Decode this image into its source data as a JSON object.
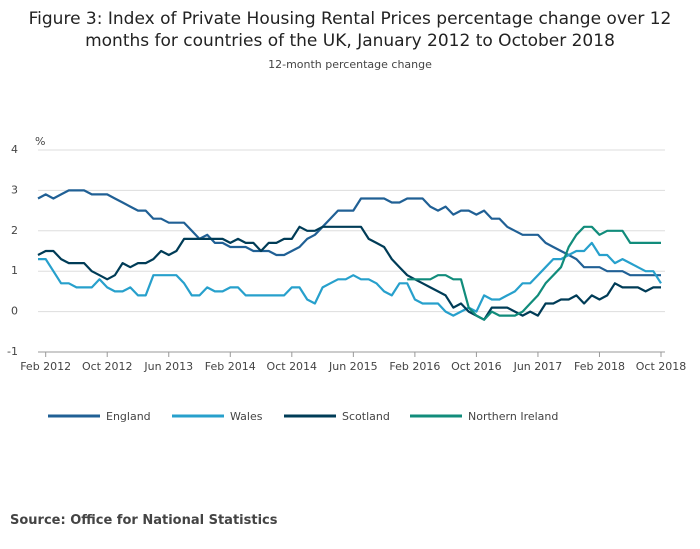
{
  "chart_data": {
    "type": "line",
    "title": "Figure 3: Index of Private Housing Rental Prices percentage change over 12 months for countries of the UK, January 2012 to October 2018",
    "subtitle": "12-month percentage change",
    "y_label": "%",
    "source": "Source: Office for National Statistics",
    "x": [
      "2012-01",
      "2012-02",
      "2012-03",
      "2012-04",
      "2012-05",
      "2012-06",
      "2012-07",
      "2012-08",
      "2012-09",
      "2012-10",
      "2012-11",
      "2012-12",
      "2013-01",
      "2013-02",
      "2013-03",
      "2013-04",
      "2013-05",
      "2013-06",
      "2013-07",
      "2013-08",
      "2013-09",
      "2013-10",
      "2013-11",
      "2013-12",
      "2014-01",
      "2014-02",
      "2014-03",
      "2014-04",
      "2014-05",
      "2014-06",
      "2014-07",
      "2014-08",
      "2014-09",
      "2014-10",
      "2014-11",
      "2014-12",
      "2015-01",
      "2015-02",
      "2015-03",
      "2015-04",
      "2015-05",
      "2015-06",
      "2015-07",
      "2015-08",
      "2015-09",
      "2015-10",
      "2015-11",
      "2015-12",
      "2016-01",
      "2016-02",
      "2016-03",
      "2016-04",
      "2016-05",
      "2016-06",
      "2016-07",
      "2016-08",
      "2016-09",
      "2016-10",
      "2016-11",
      "2016-12",
      "2017-01",
      "2017-02",
      "2017-03",
      "2017-04",
      "2017-05",
      "2017-06",
      "2017-07",
      "2017-08",
      "2017-09",
      "2017-10",
      "2017-11",
      "2017-12",
      "2018-01",
      "2018-02",
      "2018-03",
      "2018-04",
      "2018-05",
      "2018-06",
      "2018-07",
      "2018-08",
      "2018-09",
      "2018-10"
    ],
    "xticks": [
      {
        "value": "2012-02",
        "label": "Feb 2012"
      },
      {
        "value": "2012-10",
        "label": "Oct 2012"
      },
      {
        "value": "2013-06",
        "label": "Jun 2013"
      },
      {
        "value": "2014-02",
        "label": "Feb 2014"
      },
      {
        "value": "2014-10",
        "label": "Oct 2014"
      },
      {
        "value": "2015-06",
        "label": "Jun 2015"
      },
      {
        "value": "2016-02",
        "label": "Feb 2016"
      },
      {
        "value": "2016-10",
        "label": "Oct 2016"
      },
      {
        "value": "2017-06",
        "label": "Jun 2017"
      },
      {
        "value": "2018-02",
        "label": "Feb 2018"
      },
      {
        "value": "2018-10",
        "label": "Oct 2018"
      }
    ],
    "ylim": [
      -1,
      4
    ],
    "yticks": [
      -1,
      0,
      1,
      2,
      3,
      4
    ],
    "grid": true,
    "series": [
      {
        "name": "England",
        "color": "#206095",
        "values": [
          2.8,
          2.9,
          2.8,
          2.9,
          3.0,
          3.0,
          3.0,
          2.9,
          2.9,
          2.9,
          2.8,
          2.7,
          2.6,
          2.5,
          2.5,
          2.3,
          2.3,
          2.2,
          2.2,
          2.2,
          2.0,
          1.8,
          1.9,
          1.7,
          1.7,
          1.6,
          1.6,
          1.6,
          1.5,
          1.5,
          1.5,
          1.4,
          1.4,
          1.5,
          1.6,
          1.8,
          1.9,
          2.1,
          2.3,
          2.5,
          2.5,
          2.5,
          2.8,
          2.8,
          2.8,
          2.8,
          2.7,
          2.7,
          2.8,
          2.8,
          2.8,
          2.6,
          2.5,
          2.6,
          2.4,
          2.5,
          2.5,
          2.4,
          2.5,
          2.3,
          2.3,
          2.1,
          2.0,
          1.9,
          1.9,
          1.9,
          1.7,
          1.6,
          1.5,
          1.4,
          1.3,
          1.1,
          1.1,
          1.1,
          1.0,
          1.0,
          1.0,
          0.9,
          0.9,
          0.9,
          0.9,
          0.9
        ]
      },
      {
        "name": "Wales",
        "color": "#27a0cc",
        "values": [
          1.3,
          1.3,
          1.0,
          0.7,
          0.7,
          0.6,
          0.6,
          0.6,
          0.8,
          0.6,
          0.5,
          0.5,
          0.6,
          0.4,
          0.4,
          0.9,
          0.9,
          0.9,
          0.9,
          0.7,
          0.4,
          0.4,
          0.6,
          0.5,
          0.5,
          0.6,
          0.6,
          0.4,
          0.4,
          0.4,
          0.4,
          0.4,
          0.4,
          0.6,
          0.6,
          0.3,
          0.2,
          0.6,
          0.7,
          0.8,
          0.8,
          0.9,
          0.8,
          0.8,
          0.7,
          0.5,
          0.4,
          0.7,
          0.7,
          0.3,
          0.2,
          0.2,
          0.2,
          0.0,
          -0.1,
          0.0,
          0.1,
          0.0,
          0.4,
          0.3,
          0.3,
          0.4,
          0.5,
          0.7,
          0.7,
          0.9,
          1.1,
          1.3,
          1.3,
          1.4,
          1.5,
          1.5,
          1.7,
          1.4,
          1.4,
          1.2,
          1.3,
          1.2,
          1.1,
          1.0,
          1.0,
          0.7
        ]
      },
      {
        "name": "Scotland",
        "color": "#003c57",
        "values": [
          1.4,
          1.5,
          1.5,
          1.3,
          1.2,
          1.2,
          1.2,
          1.0,
          0.9,
          0.8,
          0.9,
          1.2,
          1.1,
          1.2,
          1.2,
          1.3,
          1.5,
          1.4,
          1.5,
          1.8,
          1.8,
          1.8,
          1.8,
          1.8,
          1.8,
          1.7,
          1.8,
          1.7,
          1.7,
          1.5,
          1.7,
          1.7,
          1.8,
          1.8,
          2.1,
          2.0,
          2.0,
          2.1,
          2.1,
          2.1,
          2.1,
          2.1,
          2.1,
          1.8,
          1.7,
          1.6,
          1.3,
          1.1,
          0.9,
          0.8,
          0.7,
          0.6,
          0.5,
          0.4,
          0.1,
          0.2,
          0.0,
          -0.1,
          -0.2,
          0.1,
          0.1,
          0.1,
          0.0,
          -0.1,
          0.0,
          -0.1,
          0.2,
          0.2,
          0.3,
          0.3,
          0.4,
          0.2,
          0.4,
          0.3,
          0.4,
          0.7,
          0.6,
          0.6,
          0.6,
          0.5,
          0.6,
          0.6
        ]
      },
      {
        "name": "Northern Ireland",
        "color": "#118c7b",
        "values": [
          null,
          null,
          null,
          null,
          null,
          null,
          null,
          null,
          null,
          null,
          null,
          null,
          null,
          null,
          null,
          null,
          null,
          null,
          null,
          null,
          null,
          null,
          null,
          null,
          null,
          null,
          null,
          null,
          null,
          null,
          null,
          null,
          null,
          null,
          null,
          null,
          null,
          null,
          null,
          null,
          null,
          null,
          null,
          null,
          null,
          null,
          null,
          null,
          0.8,
          0.8,
          0.8,
          0.8,
          0.9,
          0.9,
          0.8,
          0.8,
          0.1,
          -0.1,
          -0.2,
          0.0,
          -0.1,
          -0.1,
          -0.1,
          0.0,
          0.2,
          0.4,
          0.7,
          0.9,
          1.1,
          1.6,
          1.9,
          2.1,
          2.1,
          1.9,
          2.0,
          2.0,
          2.0,
          1.7,
          1.7,
          1.7,
          1.7,
          1.7
        ]
      }
    ]
  }
}
